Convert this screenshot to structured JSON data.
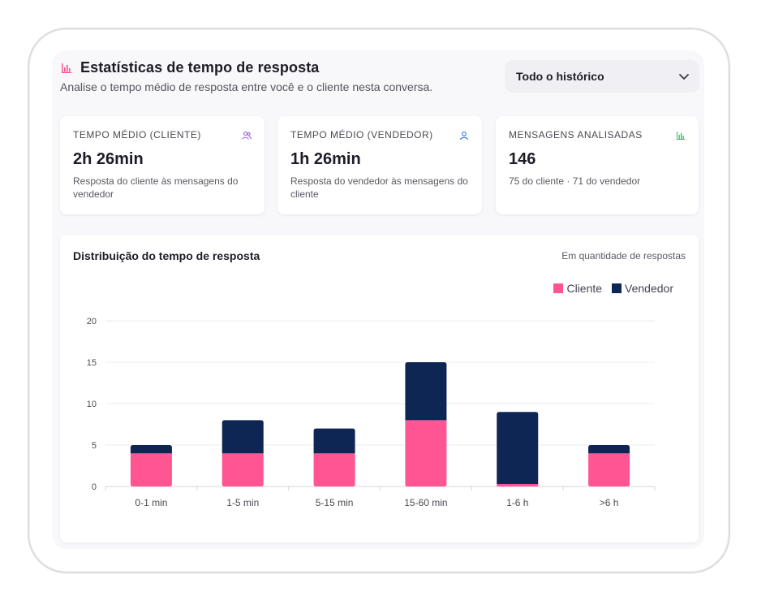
{
  "header": {
    "icon": "bar-chart-icon",
    "title": "Estatísticas de tempo de resposta",
    "subtitle": "Analise o tempo médio de resposta entre você e o cliente nesta conversa."
  },
  "filter": {
    "selected": "Todo o histórico",
    "icon": "chevron-down-icon"
  },
  "cards": [
    {
      "label": "TEMPO MÉDIO (CLIENTE)",
      "value": "2h 26min",
      "description": "Resposta do cliente às mensagens do vendedor",
      "icon": "users-icon",
      "icon_color": "#9b5de5"
    },
    {
      "label": "TEMPO MÉDIO (VENDEDOR)",
      "value": "1h 26min",
      "description": "Resposta do vendedor às mensagens do cliente",
      "icon": "user-icon",
      "icon_color": "#3b82f6"
    },
    {
      "label": "MENSAGENS ANALISADAS",
      "value": "146",
      "description": "75 do cliente · 71 do vendedor",
      "icon": "bar-chart-icon",
      "icon_color": "#22c55e"
    }
  ],
  "chart_section": {
    "title": "Distribuição do tempo de resposta",
    "note": "Em quantidade de respostas"
  },
  "colors": {
    "accent": "#ff4f8b",
    "cliente": "#ff5592",
    "vendedor": "#0d2654"
  },
  "chart_data": {
    "type": "bar",
    "stacked": true,
    "categories": [
      "0-1 min",
      "1-5 min",
      "5-15 min",
      "15-60 min",
      "1-6 h",
      ">6 h"
    ],
    "series": [
      {
        "name": "Cliente",
        "values": [
          4,
          4,
          4,
          8,
          0.3,
          4
        ]
      },
      {
        "name": "Vendedor",
        "values": [
          1,
          4,
          3,
          7,
          8.7,
          1
        ]
      }
    ],
    "yticks": [
      "0",
      "5",
      "10",
      "15",
      "20"
    ],
    "ylim": [
      0,
      20
    ],
    "grid": true,
    "legend": "top-right"
  }
}
